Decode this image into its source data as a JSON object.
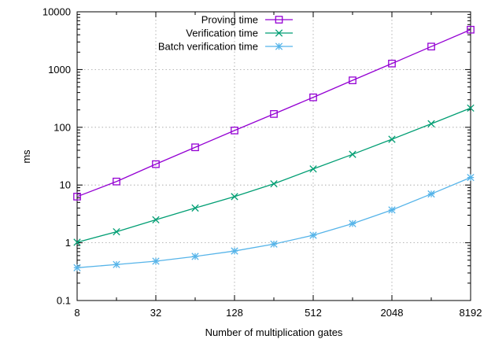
{
  "chart_data": {
    "type": "line",
    "xlabel": "Number of multiplication gates",
    "ylabel": "ms",
    "x_scale": "log2",
    "y_scale": "log10",
    "xlim": [
      8,
      8192
    ],
    "ylim": [
      0.1,
      10000
    ],
    "grid": true,
    "legend_position": "top-right",
    "x_tick_labels": [
      "8",
      "32",
      "128",
      "512",
      "2048",
      "8192"
    ],
    "x_tick_values": [
      8,
      32,
      128,
      512,
      2048,
      8192
    ],
    "y_tick_labels": [
      "0.1",
      "1",
      "10",
      "100",
      "1000",
      "10000"
    ],
    "y_tick_values": [
      0.1,
      1,
      10,
      100,
      1000,
      10000
    ],
    "x": [
      8,
      16,
      32,
      64,
      128,
      256,
      512,
      1024,
      2048,
      4096,
      8192
    ],
    "series": [
      {
        "name": "Proving time",
        "color": "#9400d3",
        "marker": "square",
        "values": [
          6.3,
          11.5,
          23,
          45,
          88,
          170,
          330,
          650,
          1270,
          2500,
          4900
        ]
      },
      {
        "name": "Verification time",
        "color": "#009e73",
        "marker": "x",
        "values": [
          1.02,
          1.55,
          2.5,
          4.0,
          6.3,
          10.5,
          19,
          34,
          62,
          115,
          215
        ]
      },
      {
        "name": "Batch verification time",
        "color": "#56b4e9",
        "marker": "star",
        "values": [
          0.37,
          0.42,
          0.48,
          0.58,
          0.72,
          0.95,
          1.35,
          2.15,
          3.7,
          7.0,
          13.5
        ]
      }
    ]
  }
}
